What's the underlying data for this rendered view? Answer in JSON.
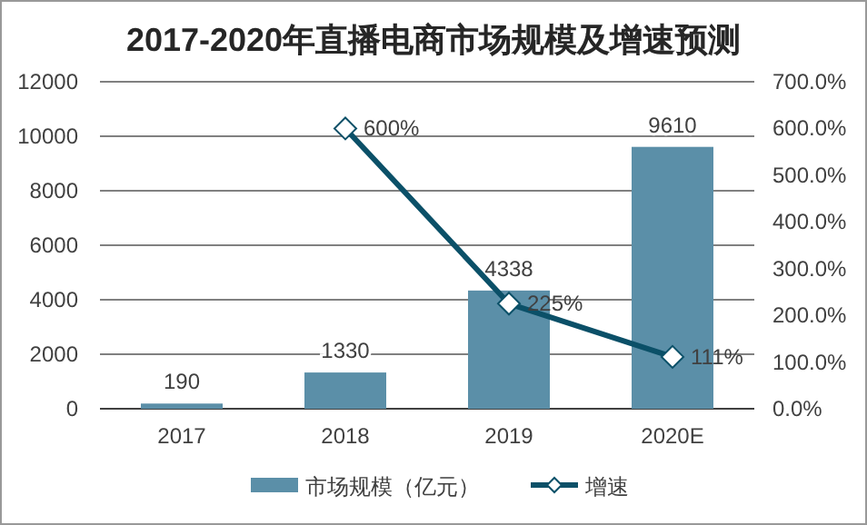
{
  "chart_data": {
    "type": "bar",
    "title": "2017-2020年直播电商市场规模及增速预测",
    "categories": [
      "2017",
      "2018",
      "2019",
      "2020E"
    ],
    "series": [
      {
        "name": "市场规模（亿元）",
        "color": "#5b8fa8",
        "values": [
          190,
          1330,
          4338,
          9610
        ],
        "data_labels": true
      },
      {
        "name": "增速",
        "type": "line",
        "axis": "y2",
        "color": "#0b5068",
        "marker": "diamond",
        "values": [
          null,
          600,
          225,
          111
        ],
        "value_labels": [
          null,
          "600%",
          "225%",
          "111%"
        ]
      }
    ],
    "ylim": [
      0,
      12000
    ],
    "yticks": [
      0,
      2000,
      4000,
      6000,
      8000,
      10000,
      12000
    ],
    "y2lim": [
      0,
      700
    ],
    "y2ticks": [
      {
        "value": 0,
        "label": "0.0%"
      },
      {
        "value": 100,
        "label": "100.0%"
      },
      {
        "value": 200,
        "label": "200.0%"
      },
      {
        "value": 300,
        "label": "300.0%"
      },
      {
        "value": 400,
        "label": "400.0%"
      },
      {
        "value": 500,
        "label": "500.0%"
      },
      {
        "value": 600,
        "label": "600.0%"
      },
      {
        "value": 700,
        "label": "700.0%"
      }
    ],
    "grid": "y",
    "legend": "bottom"
  }
}
